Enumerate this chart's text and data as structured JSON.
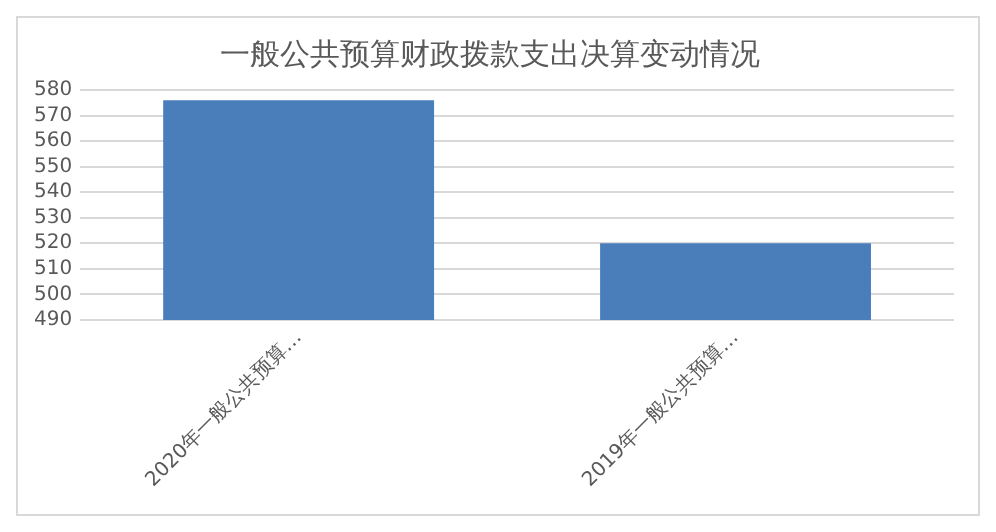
{
  "chart_data": {
    "type": "bar",
    "title": "一般公共预算财政拨款支出决算变动情况",
    "categories": [
      "2020年一般公共预算…",
      "2019年一般公共预算…"
    ],
    "values": [
      576,
      520
    ],
    "color": "#4a7ebb",
    "ylim": [
      490,
      580
    ],
    "yticks": [
      490,
      500,
      510,
      520,
      530,
      540,
      550,
      560,
      570,
      580
    ],
    "grid": "y",
    "legend": false
  }
}
